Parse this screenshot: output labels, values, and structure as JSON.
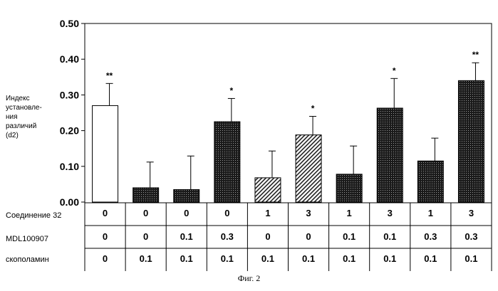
{
  "chart_data": {
    "type": "bar",
    "ylabel": "Индекс\nустановле-\nния\nразличий\n(d2)",
    "ylim": [
      0,
      0.5
    ],
    "yticks": [
      "0.00",
      "0.10",
      "0.20",
      "0.30",
      "0.40",
      "0.50"
    ],
    "values": [
      0.27,
      0.04,
      0.035,
      0.225,
      0.068,
      0.188,
      0.078,
      0.263,
      0.115,
      0.34
    ],
    "errors": [
      0.062,
      0.072,
      0.094,
      0.065,
      0.075,
      0.052,
      0.079,
      0.083,
      0.064,
      0.05
    ],
    "significance": [
      "**",
      "",
      "",
      "*",
      "",
      "*",
      "",
      "*",
      "",
      "**"
    ],
    "bar_styles": [
      "white",
      "dots",
      "dots",
      "dots",
      "hatch",
      "hatch",
      "dots",
      "dots",
      "dots",
      "dots"
    ],
    "colors": {
      "dark": "#1a1a1a",
      "light": "#ffffff",
      "hatch": "#222222"
    },
    "grid": false,
    "table": [
      {
        "label": "Соединение 32",
        "values": [
          "0",
          "0",
          "0",
          "0",
          "1",
          "3",
          "1",
          "3",
          "1",
          "3"
        ]
      },
      {
        "label": "MDL100907",
        "values": [
          "0",
          "0",
          "0.1",
          "0.3",
          "0",
          "0",
          "0.1",
          "0.1",
          "0.3",
          "0.3"
        ]
      },
      {
        "label": "скополамин",
        "values": [
          "0",
          "0.1",
          "0.1",
          "0.1",
          "0.1",
          "0.1",
          "0.1",
          "0.1",
          "0.1",
          "0.1"
        ]
      }
    ]
  },
  "caption": "Фиг. 2"
}
